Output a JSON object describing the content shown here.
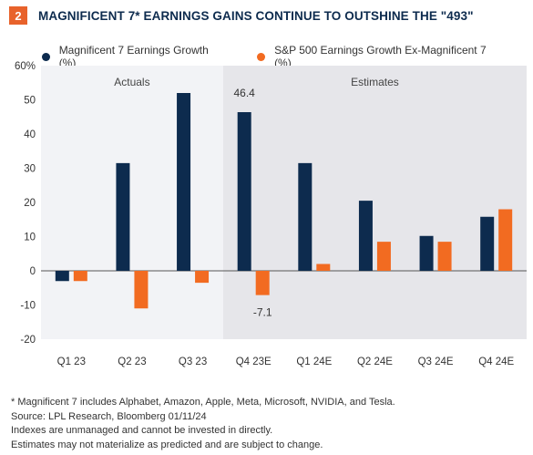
{
  "header": {
    "badge": "2",
    "title": "MAGNIFICENT 7* EARNINGS GAINS CONTINUE TO OUTSHINE THE \"493\""
  },
  "colors": {
    "series1": "#0d2b4e",
    "series2": "#f26b21",
    "shade_actuals": "#f2f3f6",
    "shade_estimates": "#e6e6ea",
    "badge": "#e8622b"
  },
  "chart_data": {
    "type": "bar",
    "categories": [
      "Q1 23",
      "Q2 23",
      "Q3 23",
      "Q4 23E",
      "Q1 24E",
      "Q2 24E",
      "Q3  24E",
      "Q4 24E"
    ],
    "series": [
      {
        "name": "Magnificent 7 Earnings Growth (%)",
        "values": [
          -3,
          31.5,
          52,
          46.4,
          31.5,
          20.5,
          10.2,
          15.8
        ]
      },
      {
        "name": "S&P 500 Earnings Growth Ex-Magnificent 7 (%)",
        "values": [
          -3,
          -11,
          -3.5,
          -7.1,
          2,
          8.5,
          8.5,
          18
        ]
      }
    ],
    "ylim": [
      -20,
      60
    ],
    "yticks": [
      {
        "value": 60,
        "label": "60%"
      },
      {
        "value": 50,
        "label": "50"
      },
      {
        "value": 40,
        "label": "40"
      },
      {
        "value": 30,
        "label": "30"
      },
      {
        "value": 20,
        "label": "20"
      },
      {
        "value": 10,
        "label": "10"
      },
      {
        "value": 0,
        "label": "0"
      },
      {
        "value": -10,
        "label": "-10"
      },
      {
        "value": -20,
        "label": "-20"
      }
    ],
    "regions": [
      {
        "label": "Actuals",
        "from": 0,
        "to": 2
      },
      {
        "label": "Estimates",
        "from": 3,
        "to": 7
      }
    ],
    "data_labels": [
      {
        "series": 0,
        "index": 3,
        "text": "46.4"
      },
      {
        "series": 1,
        "index": 3,
        "text": "-7.1"
      }
    ],
    "legend_position": "top"
  },
  "footnotes": [
    "* Magnificent 7 includes Alphabet, Amazon, Apple, Meta, Microsoft, NVIDIA, and Tesla.",
    "Source: LPL Research, Bloomberg 01/11/24",
    "Indexes are unmanaged and cannot be invested in directly.",
    "Estimates may not materialize as predicted and are subject to change."
  ]
}
